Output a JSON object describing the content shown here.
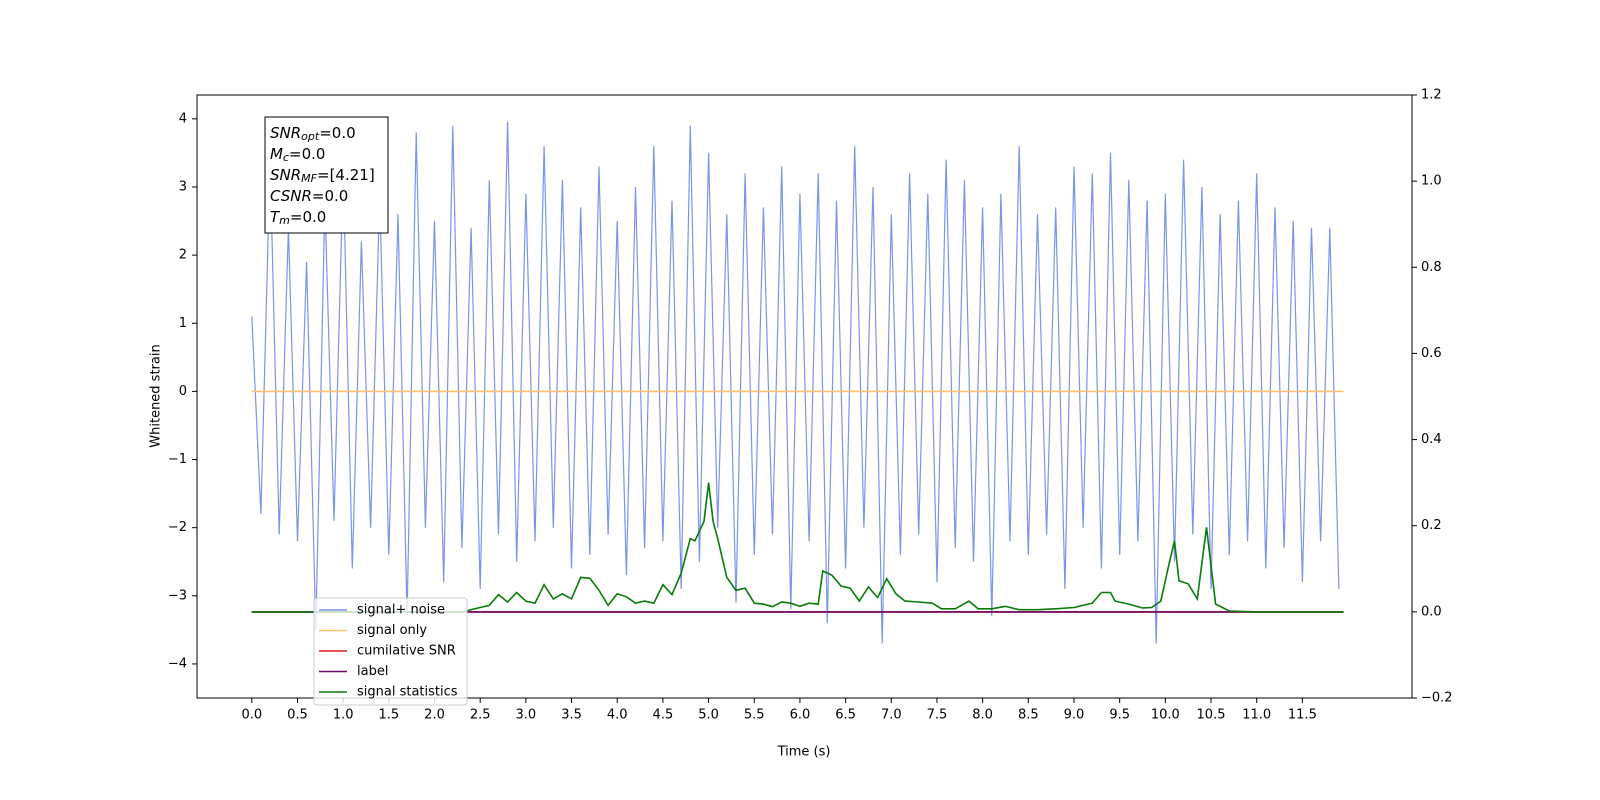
{
  "chart_data": {
    "type": "line",
    "xlabel": "Time (s)",
    "ylabel": "Whitened strain",
    "xlim": [
      -0.6,
      12.7
    ],
    "xticks": [
      {
        "value": 0,
        "label": "0.0"
      },
      0.5,
      {
        "value": 1,
        "label": "1.0"
      },
      1.5,
      {
        "value": 2,
        "label": "2.0"
      },
      2.5,
      {
        "value": 3,
        "label": "3.0"
      },
      3.5,
      {
        "value": 4,
        "label": "4.0"
      },
      4.5,
      {
        "value": 5,
        "label": "5.0"
      },
      5.5,
      {
        "value": 6,
        "label": "6.0"
      },
      6.5,
      {
        "value": 7,
        "label": "7.0"
      },
      7.5,
      {
        "value": 8,
        "label": "8.0"
      },
      8.5,
      {
        "value": 9,
        "label": "9.0"
      },
      9.5,
      {
        "value": 10,
        "label": "10.0"
      },
      10.5,
      {
        "value": 11,
        "label": "11.0"
      },
      11.5
    ],
    "ylim": [
      -4.5,
      4.35
    ],
    "yticks": [
      {
        "value": -4,
        "label": "−4"
      },
      {
        "value": -3,
        "label": "−3"
      },
      {
        "value": -2,
        "label": "−2"
      },
      {
        "value": -1,
        "label": "−1"
      },
      0,
      1,
      2,
      3,
      4
    ],
    "y2lim": [
      -0.2,
      1.2
    ],
    "y2ticks": [
      {
        "value": -0.2,
        "label": "−0.2"
      },
      {
        "value": 0,
        "label": "0.0"
      },
      0.2,
      0.4,
      0.6,
      0.8,
      {
        "value": 1,
        "label": "1.0"
      },
      1.2
    ],
    "legend": "lower left",
    "annotation": [
      {
        "main": "SNR",
        "sub": "opt",
        "rest": "=0.0"
      },
      {
        "main": "M",
        "sub": "c",
        "rest": "=0.0"
      },
      {
        "main": "SNR",
        "sub": "MF",
        "rest": "=[4.21]"
      },
      {
        "main": "CSNR",
        "rest": "=0.0"
      },
      {
        "main": "T",
        "sub": "m",
        "rest": "=0.0"
      }
    ],
    "series": [
      {
        "name": "signal+ noise",
        "color": "#7b93e8",
        "x": [
          0,
          0.1,
          0.2,
          0.3,
          0.4,
          0.5,
          0.6,
          0.7,
          0.8,
          0.9,
          1,
          1.1,
          1.2,
          1.3,
          1.4,
          1.5,
          1.6,
          1.7,
          1.8,
          1.9,
          2,
          2.1,
          2.2,
          2.3,
          2.4,
          2.5,
          2.6,
          2.7,
          2.8,
          2.9,
          3,
          3.1,
          3.2,
          3.3,
          3.4,
          3.5,
          3.6,
          3.7,
          3.8,
          3.9,
          4,
          4.1,
          4.2,
          4.3,
          4.4,
          4.5,
          4.6,
          4.7,
          4.8,
          4.9,
          5,
          5.1,
          5.2,
          5.3,
          5.4,
          5.5,
          5.6,
          5.7,
          5.8,
          5.9,
          6,
          6.1,
          6.2,
          6.3,
          6.4,
          6.5,
          6.6,
          6.7,
          6.8,
          6.9,
          7,
          7.1,
          7.2,
          7.3,
          7.4,
          7.5,
          7.6,
          7.7,
          7.8,
          7.9,
          8,
          8.1,
          8.2,
          8.3,
          8.4,
          8.5,
          8.6,
          8.7,
          8.8,
          8.9,
          9,
          9.1,
          9.2,
          9.3,
          9.4,
          9.5,
          9.6,
          9.7,
          9.8,
          9.9,
          10,
          10.1,
          10.2,
          10.3,
          10.4,
          10.5,
          10.6,
          10.7,
          10.8,
          10.9,
          11,
          11.1,
          11.2,
          11.3,
          11.4,
          11.5,
          11.6,
          11.7,
          11.8,
          11.9
        ],
        "values": [
          1.1,
          -1.8,
          3.4,
          -2.1,
          2.4,
          -2.2,
          1.9,
          -3.5,
          2.8,
          -1.9,
          3.3,
          -2.6,
          2.2,
          -2.0,
          2.9,
          -2.4,
          2.6,
          -3.3,
          3.8,
          -2.0,
          2.5,
          -2.8,
          3.9,
          -2.3,
          2.4,
          -2.9,
          3.1,
          -2.1,
          3.96,
          -2.5,
          2.9,
          -2.2,
          3.6,
          -2.0,
          3.1,
          -2.6,
          2.7,
          -2.4,
          3.3,
          -2.1,
          2.5,
          -2.7,
          3.0,
          -2.3,
          3.6,
          -2.2,
          2.8,
          -2.9,
          3.9,
          -2.5,
          3.5,
          -2.0,
          2.6,
          -3.1,
          3.2,
          -2.4,
          2.7,
          -2.1,
          3.3,
          -3.2,
          2.9,
          -2.2,
          3.2,
          -3.4,
          2.8,
          -2.6,
          3.6,
          -2.0,
          3.0,
          -3.7,
          2.6,
          -2.4,
          3.2,
          -2.1,
          2.9,
          -2.8,
          3.4,
          -2.3,
          3.1,
          -2.5,
          2.7,
          -3.3,
          2.9,
          -2.2,
          3.6,
          -2.4,
          2.6,
          -2.1,
          2.7,
          -2.9,
          3.3,
          -2.0,
          3.2,
          -2.6,
          3.5,
          -2.4,
          3.1,
          -2.2,
          2.8,
          -3.7,
          2.9,
          -2.5,
          3.4,
          -2.1,
          3.0,
          -2.9,
          2.6,
          -2.4,
          2.8,
          -2.2,
          3.2,
          -2.6,
          2.7,
          -2.3,
          2.5,
          -2.8,
          2.4,
          -2.2,
          2.4,
          -2.9
        ]
      },
      {
        "name": "signal only",
        "color": "#ffbf70",
        "x": [
          0,
          11.95
        ],
        "values": [
          0,
          0
        ]
      },
      {
        "name": "cumilative SNR",
        "color": "#e31a1c",
        "axis": "y2",
        "x": [
          0,
          11.95
        ],
        "values": [
          0,
          0
        ]
      },
      {
        "name": "label",
        "color": "#6a0a6e",
        "axis": "y2",
        "x": [
          0,
          11.95
        ],
        "values": [
          0,
          0
        ]
      },
      {
        "name": "signal statistics",
        "color": "#0a7a0a",
        "axis": "y2",
        "x": [
          0,
          2.3,
          2.5,
          2.6,
          2.7,
          2.8,
          2.9,
          3.0,
          3.1,
          3.2,
          3.3,
          3.4,
          3.5,
          3.6,
          3.7,
          3.8,
          3.9,
          4.0,
          4.1,
          4.2,
          4.3,
          4.4,
          4.5,
          4.6,
          4.7,
          4.8,
          4.85,
          4.95,
          5.0,
          5.05,
          5.1,
          5.2,
          5.3,
          5.4,
          5.5,
          5.6,
          5.7,
          5.8,
          5.9,
          6.0,
          6.1,
          6.2,
          6.25,
          6.35,
          6.45,
          6.55,
          6.65,
          6.75,
          6.85,
          6.95,
          7.05,
          7.15,
          7.3,
          7.45,
          7.55,
          7.7,
          7.85,
          7.95,
          8.1,
          8.25,
          8.4,
          8.6,
          8.8,
          9.0,
          9.2,
          9.3,
          9.4,
          9.45,
          9.6,
          9.75,
          9.85,
          9.95,
          10.05,
          10.1,
          10.15,
          10.25,
          10.35,
          10.45,
          10.55,
          10.7,
          11.0,
          11.95
        ],
        "values": [
          0,
          0,
          0.01,
          0.015,
          0.04,
          0.023,
          0.045,
          0.025,
          0.02,
          0.063,
          0.03,
          0.042,
          0.03,
          0.08,
          0.078,
          0.05,
          0.015,
          0.042,
          0.035,
          0.02,
          0.025,
          0.02,
          0.063,
          0.04,
          0.09,
          0.17,
          0.165,
          0.21,
          0.3,
          0.21,
          0.17,
          0.08,
          0.05,
          0.055,
          0.02,
          0.018,
          0.012,
          0.023,
          0.02,
          0.013,
          0.02,
          0.018,
          0.095,
          0.085,
          0.06,
          0.055,
          0.025,
          0.058,
          0.033,
          0.077,
          0.042,
          0.025,
          0.023,
          0.02,
          0.007,
          0.007,
          0.025,
          0.007,
          0.007,
          0.013,
          0.005,
          0.005,
          0.007,
          0.01,
          0.02,
          0.045,
          0.045,
          0.025,
          0.018,
          0.009,
          0.01,
          0.025,
          0.12,
          0.165,
          0.072,
          0.065,
          0.03,
          0.196,
          0.018,
          0.002,
          0,
          0
        ]
      }
    ]
  }
}
